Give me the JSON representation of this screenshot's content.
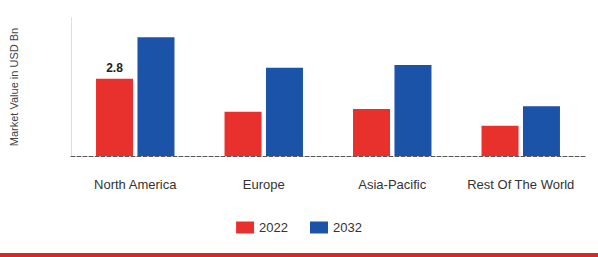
{
  "chart_data": {
    "type": "bar",
    "y_label": "Market Value in USD Bn",
    "categories": [
      "North America",
      "Europe",
      "Asia-Pacific",
      "Rest Of The World"
    ],
    "series": [
      {
        "name": "2022",
        "color": "#e8302c",
        "values": [
          2.8,
          1.6,
          1.7,
          1.1
        ],
        "value_labels": [
          "2.8",
          null,
          null,
          null
        ]
      },
      {
        "name": "2032",
        "color": "#1a53a8",
        "values": [
          4.3,
          3.2,
          3.3,
          1.8
        ]
      }
    ],
    "ylim": [
      0,
      5
    ],
    "grid": false,
    "legend": "bottom",
    "tick_labels": "x"
  }
}
